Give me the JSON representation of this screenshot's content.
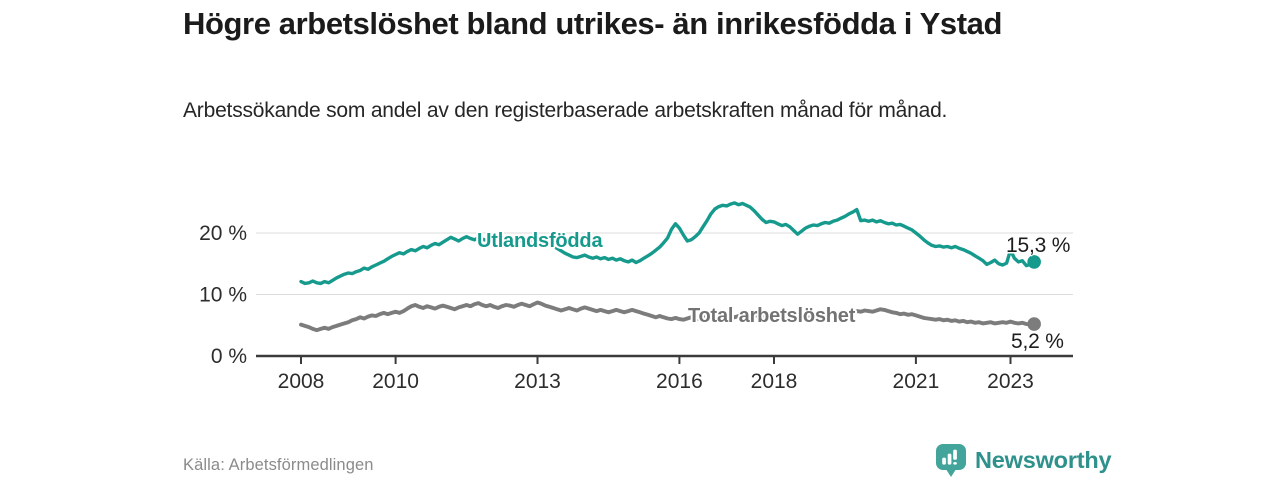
{
  "header": {
    "title": "Högre arbetslöshet bland utrikes- än inrikesfödda i Ystad",
    "subtitle": "Arbetssökande som andel av den registerbaserade arbetskraften månad för månad."
  },
  "footer": {
    "source": "Källa: Arbetsförmedlingen",
    "brand": "Newsworthy",
    "brand_icon": "bar-chart-speech-bubble-icon",
    "brand_color": "#2e918b",
    "brand_icon_color": "#43a49b"
  },
  "chart_data": {
    "type": "line",
    "title": "Högre arbetslöshet bland utrikes- än inrikesfödda i Ystad",
    "subtitle": "Arbetssökande som andel av den registerbaserade arbetskraften månad för månad.",
    "x_interval": "monthly",
    "x_start_year": 2008,
    "x_end_label_period": "2023",
    "x_tick_years": [
      2008,
      2010,
      2013,
      2016,
      2018,
      2021,
      2023
    ],
    "x_tick_labels": [
      "2008",
      "2010",
      "2013",
      "2016",
      "2018",
      "2021",
      "2023"
    ],
    "y_ticks": [
      {
        "value": 0,
        "label": "0 %"
      },
      {
        "value": 10,
        "label": "10 %"
      },
      {
        "value": 20,
        "label": "20 %"
      }
    ],
    "ylim": [
      0,
      27
    ],
    "grid": "horizontal-only",
    "legend_position": "inline-labels-on-lines",
    "grid_color": "#dcdcdc",
    "axis_color": "#3b3b3b",
    "tick_label_color": "#2d2d2d",
    "series": [
      {
        "name": "Utlandsfödda",
        "color": "#169a8d",
        "end_value": 15.3,
        "end_label": "15,3 %",
        "values": [
          12.1,
          11.8,
          11.9,
          12.2,
          11.9,
          11.8,
          12.1,
          11.9,
          12.3,
          12.7,
          13.0,
          13.3,
          13.5,
          13.4,
          13.7,
          13.9,
          14.3,
          14.1,
          14.5,
          14.8,
          15.1,
          15.4,
          15.8,
          16.2,
          16.5,
          16.8,
          16.6,
          17.0,
          17.3,
          17.1,
          17.5,
          17.8,
          17.6,
          18.0,
          18.3,
          18.1,
          18.5,
          18.9,
          19.3,
          19.0,
          18.7,
          19.1,
          19.4,
          19.1,
          18.9,
          19.2,
          19.0,
          18.8,
          19.1,
          19.3,
          19.0,
          18.8,
          19.0,
          18.7,
          18.9,
          18.6,
          18.8,
          18.5,
          18.7,
          18.9,
          19.0,
          18.8,
          18.5,
          18.2,
          17.9,
          17.5,
          17.1,
          16.7,
          16.4,
          16.1,
          16.0,
          16.2,
          16.4,
          16.1,
          15.9,
          16.1,
          15.8,
          16.0,
          15.7,
          15.9,
          15.6,
          15.8,
          15.5,
          15.3,
          15.6,
          15.2,
          15.5,
          15.9,
          16.3,
          16.7,
          17.2,
          17.7,
          18.4,
          19.2,
          20.6,
          21.5,
          20.8,
          19.7,
          18.7,
          18.9,
          19.4,
          20.0,
          21.0,
          22.0,
          23.1,
          23.9,
          24.3,
          24.5,
          24.4,
          24.7,
          24.9,
          24.6,
          24.8,
          24.5,
          24.2,
          23.6,
          22.9,
          22.2,
          21.7,
          21.9,
          21.8,
          21.5,
          21.2,
          21.4,
          21.0,
          20.4,
          19.8,
          20.3,
          20.8,
          21.1,
          21.3,
          21.2,
          21.5,
          21.7,
          21.6,
          21.9,
          22.1,
          22.4,
          22.7,
          23.1,
          23.4,
          23.8,
          22.0,
          22.1,
          21.9,
          22.1,
          21.8,
          22.0,
          21.7,
          21.5,
          21.6,
          21.3,
          21.4,
          21.1,
          20.8,
          20.5,
          20.0,
          19.5,
          18.9,
          18.4,
          18.0,
          17.8,
          17.9,
          17.7,
          17.8,
          17.6,
          17.8,
          17.5,
          17.3,
          17.0,
          16.7,
          16.3,
          15.9,
          15.5,
          14.9,
          15.2,
          15.6,
          15.0,
          14.8,
          15.1,
          17.2,
          15.9,
          15.3,
          15.5,
          14.7,
          14.9,
          15.3
        ]
      },
      {
        "name": "Total arbetslöshet",
        "color": "#7c7c7c",
        "end_value": 5.2,
        "end_label": "5,2 %",
        "values": [
          5.1,
          4.9,
          4.7,
          4.4,
          4.2,
          4.4,
          4.6,
          4.4,
          4.7,
          4.9,
          5.1,
          5.3,
          5.5,
          5.8,
          6.0,
          6.3,
          6.1,
          6.4,
          6.6,
          6.5,
          6.8,
          7.0,
          6.8,
          7.0,
          7.2,
          7.0,
          7.3,
          7.7,
          8.1,
          8.3,
          8.0,
          7.8,
          8.1,
          7.9,
          7.7,
          8.0,
          8.2,
          8.0,
          7.8,
          7.6,
          7.9,
          8.1,
          8.3,
          8.1,
          8.4,
          8.6,
          8.3,
          8.1,
          8.3,
          8.0,
          7.8,
          8.1,
          8.3,
          8.2,
          8.0,
          8.3,
          8.5,
          8.3,
          8.1,
          8.4,
          8.7,
          8.5,
          8.2,
          8.0,
          7.8,
          7.6,
          7.4,
          7.6,
          7.8,
          7.6,
          7.4,
          7.7,
          7.9,
          7.7,
          7.5,
          7.3,
          7.5,
          7.3,
          7.1,
          7.3,
          7.5,
          7.3,
          7.1,
          7.3,
          7.5,
          7.3,
          7.1,
          6.9,
          6.7,
          6.5,
          6.3,
          6.5,
          6.3,
          6.1,
          6.0,
          6.2,
          6.0,
          5.9,
          6.1,
          6.3,
          6.1,
          6.0,
          6.2,
          6.4,
          6.6,
          6.4,
          6.2,
          6.5,
          6.7,
          6.5,
          6.3,
          6.5,
          6.7,
          6.5,
          6.3,
          6.5,
          6.7,
          6.5,
          6.3,
          6.5,
          6.3,
          6.1,
          6.0,
          6.2,
          6.0,
          5.9,
          6.1,
          6.3,
          6.1,
          6.3,
          6.5,
          6.7,
          6.5,
          6.7,
          6.9,
          6.7,
          6.9,
          7.1,
          7.0,
          7.2,
          7.1,
          7.3,
          7.2,
          7.4,
          7.3,
          7.2,
          7.4,
          7.6,
          7.5,
          7.3,
          7.1,
          7.0,
          6.8,
          6.9,
          6.7,
          6.8,
          6.6,
          6.4,
          6.2,
          6.1,
          6.0,
          5.9,
          6.0,
          5.8,
          5.9,
          5.7,
          5.8,
          5.6,
          5.7,
          5.5,
          5.6,
          5.4,
          5.5,
          5.3,
          5.4,
          5.5,
          5.3,
          5.4,
          5.5,
          5.4,
          5.6,
          5.4,
          5.3,
          5.4,
          5.2,
          5.1,
          5.2
        ]
      }
    ]
  }
}
